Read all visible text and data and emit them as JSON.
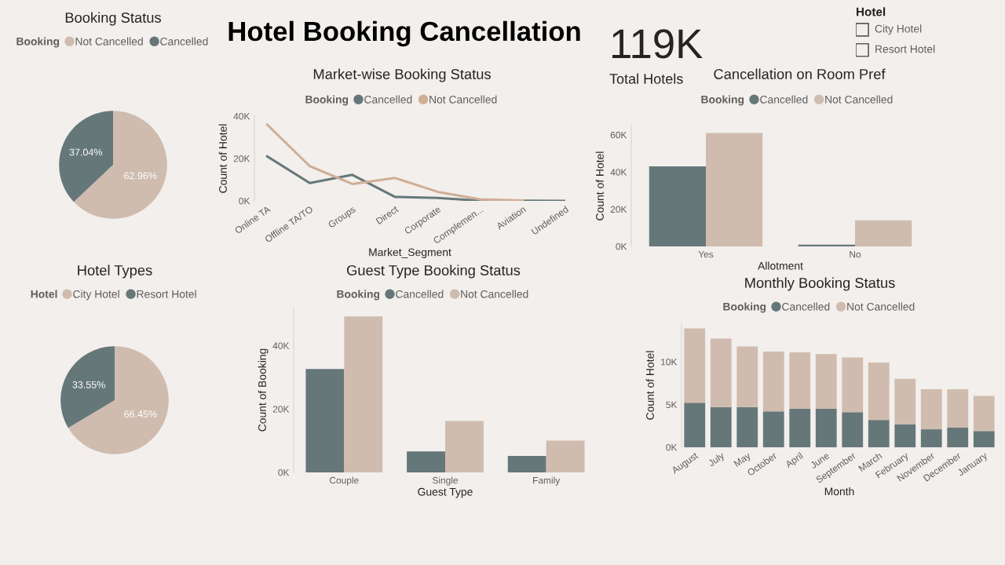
{
  "chart_data": [
    {
      "type": "pie",
      "title": "Booking Status",
      "legend_title": "Booking",
      "legend": "top",
      "categories": [
        "Not Cancelled",
        "Cancelled"
      ],
      "values": [
        62.96,
        37.04
      ],
      "colors": [
        "#cfbcae",
        "#66777a"
      ],
      "value_labels": [
        "62.96%",
        "37.04%"
      ]
    },
    {
      "type": "other",
      "title": "Hotel Booking Cancellation"
    },
    {
      "type": "line",
      "title": "Market-wise Booking Status",
      "legend_title": "Booking",
      "legend": "top",
      "xlabel": "Market_Segment",
      "ylabel": "Count of Hotel",
      "categories": [
        "Online TA",
        "Offline TA/TO",
        "Groups",
        "Direct",
        "Corporate",
        "Complemen...",
        "Aviation",
        "Undefined"
      ],
      "series": [
        {
          "name": "Cancelled",
          "color": "#66777a",
          "values": [
            21.0,
            8.4,
            12.3,
            1.9,
            1.4,
            0.1,
            0.1,
            0
          ]
        },
        {
          "name": "Not Cancelled",
          "color": "#cfae96",
          "values": [
            36.0,
            16.4,
            8.0,
            10.8,
            4.3,
            0.7,
            0.2,
            null
          ]
        }
      ],
      "ylim": [
        0,
        40
      ],
      "yticks": [
        {
          "value": 0,
          "label": "0K"
        },
        {
          "value": 20,
          "label": "20K"
        },
        {
          "value": 40,
          "label": "40K"
        }
      ]
    },
    {
      "type": "other",
      "title": "Total Hotels",
      "annotations": [
        "119K"
      ]
    },
    {
      "type": "other",
      "title": "Hotel",
      "categories": [
        "City Hotel",
        "Resort Hotel"
      ]
    },
    {
      "type": "bar",
      "title": "Cancellation on Room Pref",
      "legend_title": "Booking",
      "legend": "top",
      "xlabel": "Allotment",
      "ylabel": "Count of Hotel",
      "categories": [
        "Yes",
        "No"
      ],
      "series": [
        {
          "name": "Cancelled",
          "color": "#66777a",
          "values": [
            43,
            1
          ]
        },
        {
          "name": "Not Cancelled",
          "color": "#cfbcae",
          "values": [
            61,
            14
          ]
        }
      ],
      "ylim": [
        0,
        65
      ],
      "yticks": [
        {
          "value": 0,
          "label": "0K"
        },
        {
          "value": 20,
          "label": "20K"
        },
        {
          "value": 40,
          "label": "40K"
        },
        {
          "value": 60,
          "label": "60K"
        }
      ]
    },
    {
      "type": "pie",
      "title": "Hotel Types",
      "legend_title": "Hotel",
      "legend": "top",
      "categories": [
        "City Hotel",
        "Resort Hotel"
      ],
      "values": [
        66.45,
        33.55
      ],
      "colors": [
        "#cfbcae",
        "#66777a"
      ],
      "value_labels": [
        "66.45%",
        "33.55%"
      ]
    },
    {
      "type": "bar",
      "title": "Guest Type Booking Status",
      "legend_title": "Booking",
      "legend": "top",
      "xlabel": "Guest Type",
      "ylabel": "Count of Booking",
      "categories": [
        "Couple",
        "Single",
        "Family"
      ],
      "series": [
        {
          "name": "Cancelled",
          "color": "#66777a",
          "values": [
            32.6,
            6.6,
            5.2
          ]
        },
        {
          "name": "Not Cancelled",
          "color": "#cfbcae",
          "values": [
            49.2,
            16.2,
            10.0
          ]
        }
      ],
      "ylim": [
        0,
        52
      ],
      "yticks": [
        {
          "value": 0,
          "label": "0K"
        },
        {
          "value": 20,
          "label": "20K"
        },
        {
          "value": 40,
          "label": "40K"
        }
      ]
    },
    {
      "type": "bar",
      "stacked": true,
      "title": "Monthly Booking Status",
      "legend_title": "Booking",
      "legend": "top",
      "xlabel": "Month",
      "ylabel": "Count of Hotel",
      "categories": [
        "August",
        "July",
        "May",
        "October",
        "April",
        "June",
        "September",
        "March",
        "February",
        "November",
        "December",
        "January"
      ],
      "series": [
        {
          "name": "Cancelled",
          "color": "#66777a",
          "values": [
            5.2,
            4.7,
            4.7,
            4.2,
            4.5,
            4.5,
            4.1,
            3.2,
            2.7,
            2.1,
            2.3,
            1.9
          ]
        },
        {
          "name": "Not Cancelled",
          "color": "#cfbcae",
          "values": [
            8.7,
            8.0,
            7.1,
            7.0,
            6.6,
            6.4,
            6.4,
            6.7,
            5.3,
            4.7,
            4.5,
            4.1
          ]
        }
      ],
      "ylim": [
        0,
        14.5
      ],
      "yticks": [
        {
          "value": 0,
          "label": "0K"
        },
        {
          "value": 5,
          "label": "5K"
        },
        {
          "value": 10,
          "label": "10K"
        }
      ]
    }
  ]
}
